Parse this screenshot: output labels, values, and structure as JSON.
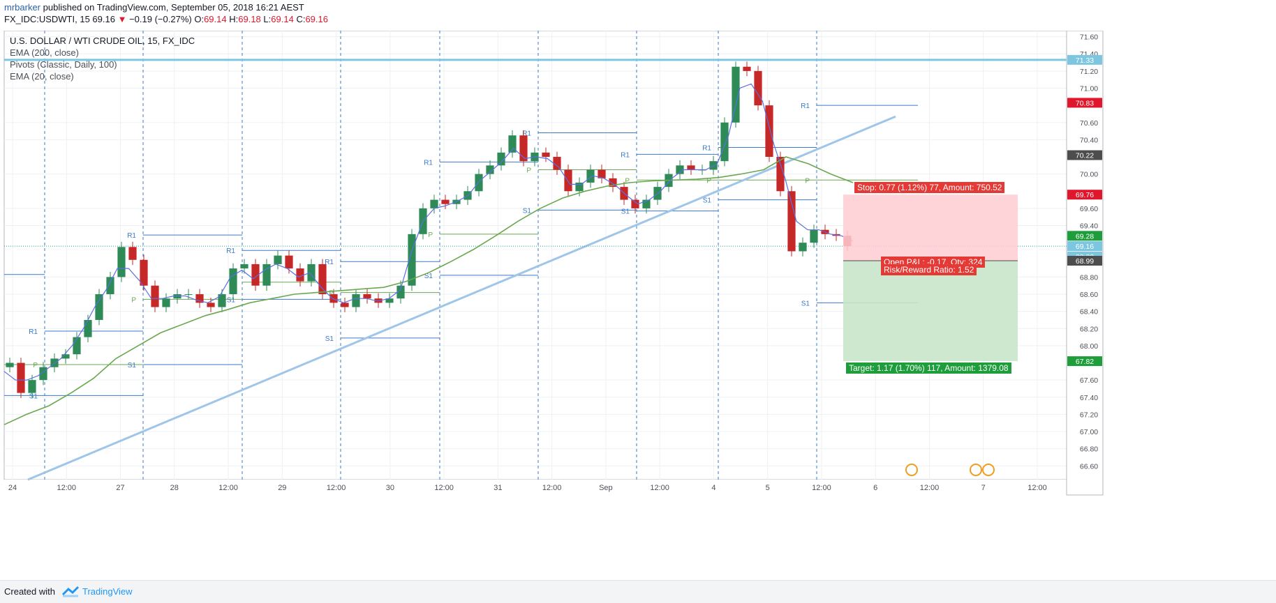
{
  "header": {
    "publisher": "mrbarker",
    "published_text": " published on TradingView.com, September 05, 2018 16:21 AEST",
    "symbol": "FX_IDC:USDWTI, 15",
    "last": "69.16",
    "change": "−0.19 (−0.27%)",
    "open_label": "O:",
    "open": "69.14",
    "high_label": "H:",
    "high": "69.18",
    "low_label": "L:",
    "low": "69.14",
    "close_label": "C:",
    "close": "69.16"
  },
  "legend": {
    "title": "U.S. DOLLAR / WTI CRUDE OIL, 15, FX_IDC",
    "ind1": "EMA (200, close)",
    "ind2": "Pivots (Classic, Daily, 100)",
    "ind3": "EMA (20, close)"
  },
  "position": {
    "stop_text": "Stop: 0.77 (1.12%) 77, Amount: 750.52",
    "pnl_text": "Open P&L: -0.17, Qty: 324",
    "rr_text": "Risk/Reward Ratio: 1.52",
    "target_text": "Target: 1.17 (1.70%) 117, Amount: 1379.08",
    "stop_color": "#e53935",
    "target_color": "#1e9e3a",
    "entry": 68.99,
    "stop": 69.76,
    "target": 67.82
  },
  "footer": {
    "created": "Created with",
    "brand": "TradingView"
  },
  "colors": {
    "ema200": "#6aa84f",
    "ema20": "#5b6ee1",
    "trendline": "#9fc5e8",
    "pivot_blue": "#3a78c9",
    "pivot_green": "#6aa84f",
    "up": "#2e8b57",
    "down": "#c62828",
    "resistance": "#7cc6e0"
  },
  "chart_data": {
    "type": "candlestick",
    "yaxis": {
      "range": [
        66.44,
        71.67
      ],
      "ticks": [
        "71.60",
        "71.40",
        "71.20",
        "71.00",
        "70.60",
        "70.40",
        "70.00",
        "69.60",
        "69.40",
        "68.80",
        "68.60",
        "68.40",
        "68.20",
        "68.00",
        "67.60",
        "67.40",
        "67.20",
        "67.00",
        "66.80",
        "66.60"
      ]
    },
    "xaxis": {
      "ticks": [
        "24",
        "12:00",
        "27",
        "28",
        "12:00",
        "29",
        "12:00",
        "30",
        "12:00",
        "31",
        "12:00",
        "Sep",
        "12:00",
        "4",
        "5",
        "12:00",
        "6",
        "12:00",
        "7",
        "12:00"
      ]
    },
    "price_labels": [
      {
        "text": "71.33",
        "value": 71.33,
        "color": "#7cc6e0"
      },
      {
        "text": "70.83",
        "value": 70.83,
        "color": "#e0172c"
      },
      {
        "text": "70.22",
        "value": 70.22,
        "color": "#4d4d4d"
      },
      {
        "text": "69.76",
        "value": 69.76,
        "color": "#e0172c"
      },
      {
        "text": "69.28",
        "value": 69.28,
        "color": "#1e9e3a"
      },
      {
        "text": "69.16",
        "value": 69.16,
        "color": "#7cc6e0"
      },
      {
        "text": "08:22",
        "value": 69.04,
        "color": "#7cc6e0"
      },
      {
        "text": "68.99",
        "value": 68.99,
        "color": "#4d4d4d"
      },
      {
        "text": "67.82",
        "value": 67.82,
        "color": "#1e9e3a"
      }
    ],
    "resistance_line": 71.33,
    "last_price": 69.16,
    "pivots": [
      {
        "day": 0,
        "R1": 68.83,
        "P": 67.78,
        "S1": 67.42
      },
      {
        "day": 1,
        "R1": 68.17,
        "P": 67.78,
        "S1": 67.42
      },
      {
        "day": 2,
        "R1": 69.29,
        "P": 68.54,
        "S1": 67.78
      },
      {
        "day": 3,
        "R1": 69.11,
        "P": 68.74,
        "S1": 68.54
      },
      {
        "day": 4,
        "R1": 68.98,
        "P": 68.62,
        "S1": 68.09
      },
      {
        "day": 5,
        "R1": 70.14,
        "P": 69.3,
        "S1": 68.82
      },
      {
        "day": 6,
        "R1": 70.48,
        "P": 70.05,
        "S1": 69.58
      },
      {
        "day": 7,
        "R1": 70.23,
        "P": 69.93,
        "S1": 69.57
      },
      {
        "day": 8,
        "R1": 70.31,
        "P": 69.93,
        "S1": 69.7
      },
      {
        "day": 9,
        "R1": 70.8,
        "P": 69.93,
        "S1": 68.5
      }
    ],
    "trendline": [
      [
        "Aug 24 07:00",
        66.44
      ],
      [
        "Sep 6 03:00",
        70.67
      ]
    ],
    "close_series": [
      67.8,
      67.45,
      67.6,
      67.75,
      67.85,
      67.9,
      68.1,
      68.3,
      68.6,
      68.8,
      69.15,
      69.0,
      68.7,
      68.45,
      68.55,
      68.6,
      68.6,
      68.5,
      68.45,
      68.6,
      68.9,
      68.95,
      68.7,
      68.95,
      69.05,
      68.9,
      68.75,
      68.95,
      68.6,
      68.5,
      68.45,
      68.6,
      68.55,
      68.5,
      68.55,
      68.7,
      69.3,
      69.6,
      69.7,
      69.65,
      69.7,
      69.8,
      70.0,
      70.1,
      70.25,
      70.45,
      70.15,
      70.25,
      70.2,
      70.05,
      69.8,
      69.9,
      70.05,
      69.95,
      69.85,
      69.7,
      69.6,
      69.7,
      69.85,
      70.0,
      70.1,
      70.05,
      70.05,
      70.15,
      70.6,
      71.25,
      71.2,
      70.8,
      70.2,
      69.8,
      69.1,
      69.2,
      69.35,
      69.3,
      69.28,
      69.16
    ],
    "ema20_series": [
      67.7,
      67.6,
      67.6,
      67.65,
      67.75,
      67.85,
      68.0,
      68.2,
      68.45,
      68.65,
      68.9,
      68.9,
      68.75,
      68.55,
      68.55,
      68.58,
      68.58,
      68.53,
      68.5,
      68.57,
      68.8,
      68.88,
      68.78,
      68.88,
      68.95,
      68.9,
      68.8,
      68.85,
      68.68,
      68.55,
      68.5,
      68.55,
      68.55,
      68.52,
      68.55,
      68.65,
      69.1,
      69.45,
      69.6,
      69.63,
      69.68,
      69.75,
      69.92,
      70.03,
      70.15,
      70.3,
      70.18,
      70.2,
      70.18,
      70.08,
      69.88,
      69.88,
      69.98,
      69.95,
      69.87,
      69.75,
      69.65,
      69.7,
      69.8,
      69.95,
      70.05,
      70.05,
      70.05,
      70.12,
      70.45,
      71.0,
      71.05,
      70.85,
      70.35,
      69.95,
      69.45,
      69.35,
      69.35,
      69.3,
      69.28,
      69.22
    ],
    "ema200_series": [
      67.08,
      67.2,
      67.3,
      67.45,
      67.62,
      67.85,
      68.0,
      68.15,
      68.25,
      68.35,
      68.42,
      68.5,
      68.55,
      68.6,
      68.62,
      68.64,
      68.66,
      68.68,
      68.75,
      68.85,
      68.98,
      69.12,
      69.28,
      69.45,
      69.6,
      69.72,
      69.8,
      69.86,
      69.9,
      69.92,
      69.93,
      69.94,
      69.96,
      70.0,
      70.05,
      70.2,
      70.12,
      70.0,
      69.9
    ]
  }
}
